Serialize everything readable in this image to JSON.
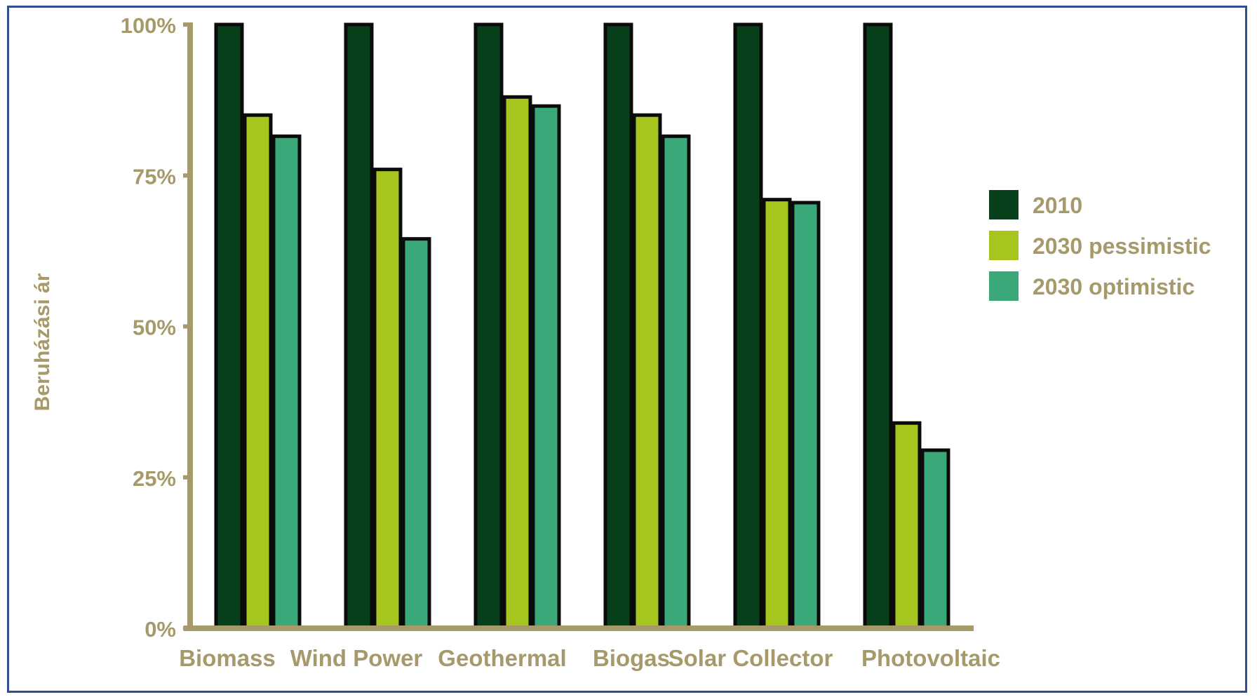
{
  "chart_data": {
    "type": "bar",
    "title": "",
    "xlabel": "",
    "ylabel": "Beruházási ár",
    "ylim": [
      0,
      100
    ],
    "yticks": [
      0,
      25,
      50,
      75,
      100
    ],
    "ytick_labels": [
      "0%",
      "25%",
      "50%",
      "75%",
      "100%"
    ],
    "categories": [
      "Biomass",
      "Wind Power",
      "Geothermal",
      "Biogas",
      "Solar Collector",
      "Photovoltaic"
    ],
    "series": [
      {
        "name": "2010",
        "color": "#07401a",
        "values": [
          100,
          100,
          100,
          100,
          100,
          100
        ]
      },
      {
        "name": "2030 pessimistic",
        "color": "#a6c51e",
        "values": [
          85,
          76,
          88,
          85,
          71,
          34
        ]
      },
      {
        "name": "2030 optimistic",
        "color": "#3ba87a",
        "values": [
          81.5,
          64.5,
          86.5,
          81.5,
          70.5,
          29.5
        ]
      }
    ],
    "legend_position": "right",
    "grid": false,
    "axis_color": "#a69a6a"
  }
}
